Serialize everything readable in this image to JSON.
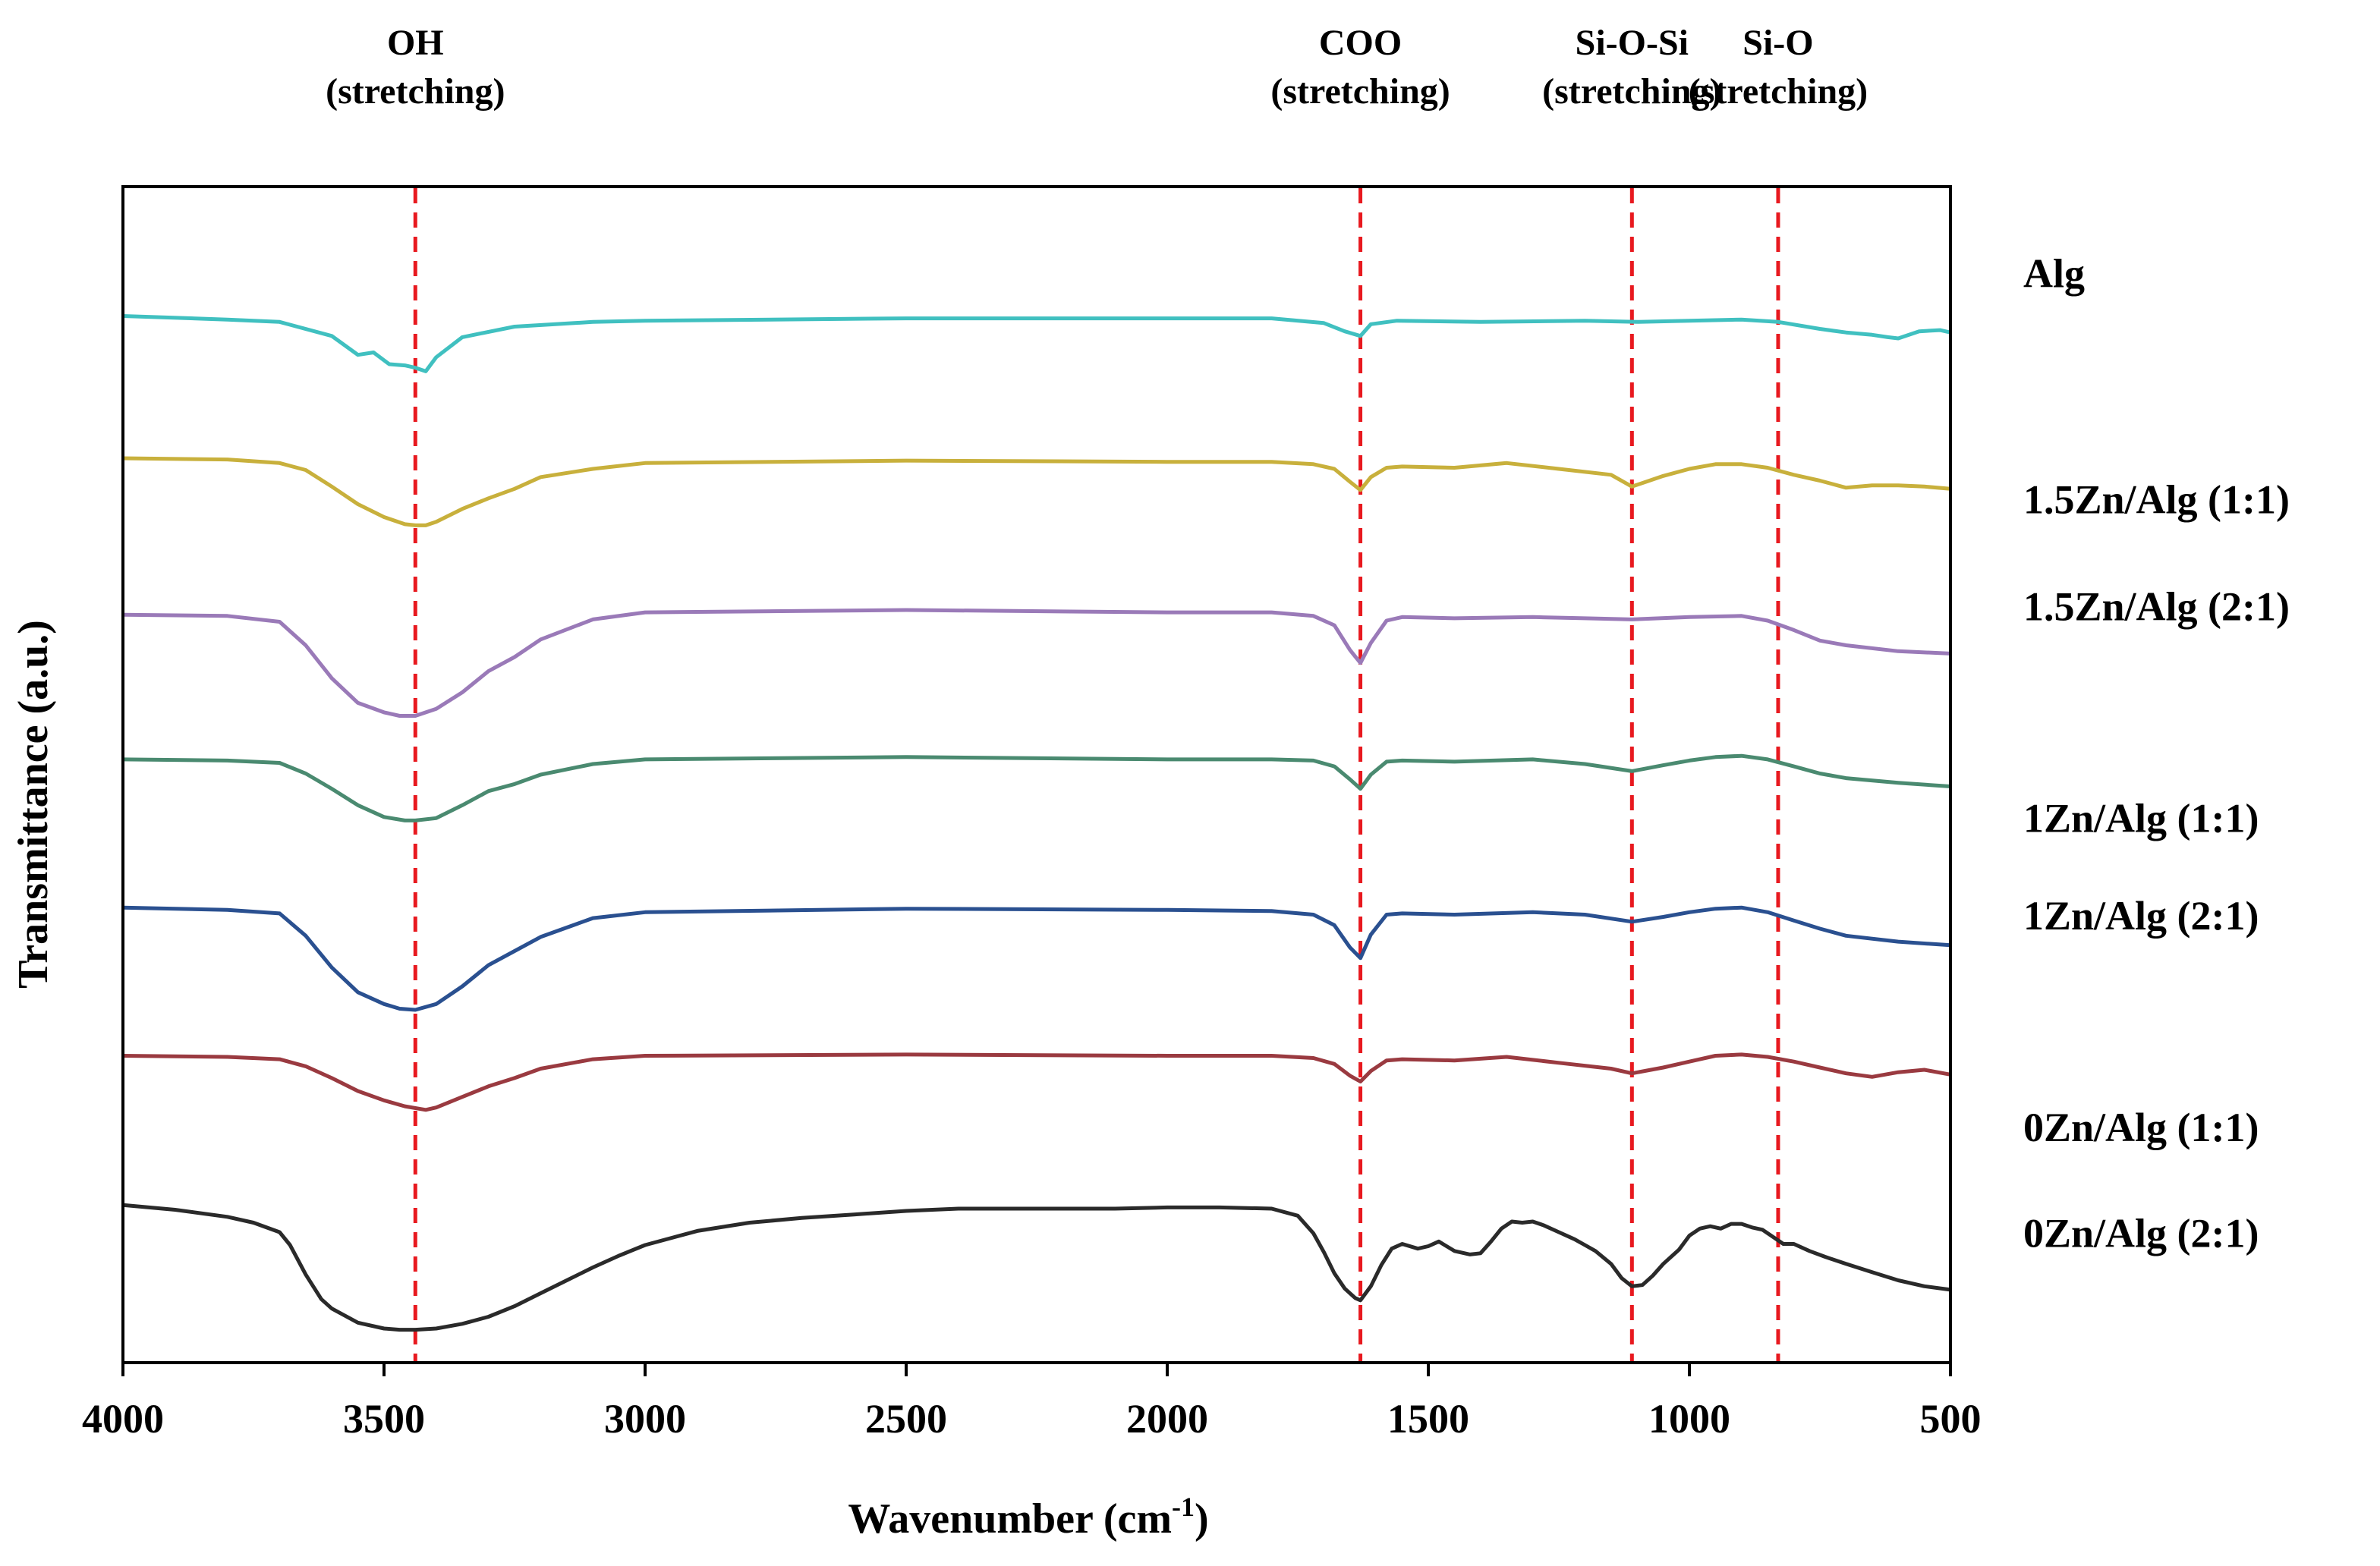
{
  "chart_data": {
    "type": "line",
    "title": "",
    "xlabel": "Wavenumber (cm",
    "xlabel_sup": "-1",
    "xlabel_close": ")",
    "ylabel": "Transmittance (a.u.)",
    "xlim": [
      4000,
      500
    ],
    "x_reversed": true,
    "ylim": [
      0,
      100
    ],
    "grid": false,
    "x_ticks": [
      4000,
      3500,
      3000,
      2500,
      2000,
      1500,
      1000,
      500
    ],
    "x_tick_labels": [
      "4000",
      "3500",
      "3000",
      "2500",
      "2000",
      "1500",
      "1000",
      "500"
    ],
    "reference_lines": [
      {
        "x": 3440,
        "color": "#e8191f",
        "style": "dashed",
        "label_line1": "OH",
        "label_line2": "(stretching)"
      },
      {
        "x": 1630,
        "color": "#e8191f",
        "style": "dashed",
        "label_line1": "COO",
        "label_line2": "(stretching)"
      },
      {
        "x": 1110,
        "color": "#e8191f",
        "style": "dashed",
        "label_line1": "Si-O-Si",
        "label_line2": "(stretching)"
      },
      {
        "x": 830,
        "color": "#e8191f",
        "style": "dashed",
        "label_line1": "Si-O",
        "label_line2": "(stretching)"
      }
    ],
    "series": [
      {
        "name": "Alg",
        "color": "#40c0c0",
        "label_level": 92.6,
        "x": [
          4000,
          3800,
          3700,
          3600,
          3550,
          3520,
          3490,
          3460,
          3440,
          3420,
          3400,
          3350,
          3250,
          3100,
          3000,
          2500,
          2000,
          1800,
          1700,
          1660,
          1630,
          1610,
          1560,
          1400,
          1200,
          1100,
          1000,
          900,
          830,
          750,
          700,
          650,
          620,
          600,
          560,
          520,
          500
        ],
        "y": [
          89.0,
          88.7,
          88.5,
          87.3,
          85.7,
          85.9,
          84.9,
          84.8,
          84.6,
          84.3,
          85.5,
          87.2,
          88.1,
          88.5,
          88.6,
          88.8,
          88.8,
          88.8,
          88.4,
          87.7,
          87.3,
          88.3,
          88.6,
          88.5,
          88.6,
          88.5,
          88.6,
          88.7,
          88.5,
          87.9,
          87.6,
          87.4,
          87.2,
          87.1,
          87.7,
          87.8,
          87.6
        ]
      },
      {
        "name": "1.5Zn/Alg (1:1)",
        "color": "#c8b03c",
        "label_level": 73.4,
        "x": [
          4000,
          3800,
          3700,
          3650,
          3600,
          3550,
          3500,
          3460,
          3440,
          3420,
          3400,
          3350,
          3300,
          3250,
          3200,
          3100,
          3000,
          2500,
          2000,
          1800,
          1720,
          1680,
          1650,
          1630,
          1610,
          1580,
          1550,
          1450,
          1350,
          1250,
          1150,
          1110,
          1050,
          1000,
          950,
          900,
          850,
          800,
          750,
          700,
          650,
          600,
          550,
          500
        ],
        "y": [
          76.9,
          76.8,
          76.5,
          75.9,
          74.5,
          73.0,
          71.9,
          71.3,
          71.2,
          71.2,
          71.5,
          72.6,
          73.5,
          74.3,
          75.3,
          76.0,
          76.5,
          76.7,
          76.6,
          76.6,
          76.4,
          76.0,
          74.9,
          74.2,
          75.3,
          76.1,
          76.2,
          76.1,
          76.5,
          76.0,
          75.5,
          74.5,
          75.4,
          76.0,
          76.4,
          76.4,
          76.1,
          75.5,
          75.0,
          74.4,
          74.6,
          74.6,
          74.5,
          74.3
        ]
      },
      {
        "name": "1.5Zn/Alg (2:1)",
        "color": "#9a7ab8",
        "label_level": 64.3,
        "x": [
          4000,
          3800,
          3700,
          3650,
          3600,
          3550,
          3500,
          3470,
          3440,
          3400,
          3350,
          3300,
          3250,
          3200,
          3100,
          3000,
          2500,
          2000,
          1800,
          1720,
          1680,
          1650,
          1630,
          1610,
          1580,
          1550,
          1450,
          1300,
          1200,
          1110,
          1000,
          900,
          850,
          800,
          750,
          700,
          600,
          500
        ],
        "y": [
          63.6,
          63.5,
          63.0,
          61.0,
          58.2,
          56.1,
          55.3,
          55.0,
          55.0,
          55.6,
          57.0,
          58.8,
          60.0,
          61.5,
          63.2,
          63.8,
          64.0,
          63.8,
          63.8,
          63.5,
          62.7,
          60.6,
          59.5,
          61.2,
          63.1,
          63.4,
          63.3,
          63.4,
          63.3,
          63.2,
          63.4,
          63.5,
          63.1,
          62.3,
          61.4,
          61.0,
          60.5,
          60.3
        ]
      },
      {
        "name": "1Zn/Alg (1:1)",
        "color": "#4a8a70",
        "label_level": 46.3,
        "x": [
          4000,
          3800,
          3700,
          3650,
          3600,
          3550,
          3500,
          3460,
          3440,
          3400,
          3350,
          3300,
          3250,
          3200,
          3100,
          3000,
          2500,
          2000,
          1800,
          1720,
          1680,
          1650,
          1630,
          1610,
          1580,
          1550,
          1450,
          1300,
          1200,
          1110,
          1050,
          1000,
          950,
          900,
          850,
          800,
          750,
          700,
          600,
          500
        ],
        "y": [
          51.3,
          51.2,
          51.0,
          50.1,
          48.8,
          47.4,
          46.4,
          46.1,
          46.1,
          46.3,
          47.4,
          48.6,
          49.2,
          50.0,
          50.9,
          51.3,
          51.5,
          51.3,
          51.3,
          51.2,
          50.7,
          49.6,
          48.8,
          50.0,
          51.1,
          51.2,
          51.1,
          51.3,
          50.9,
          50.3,
          50.8,
          51.2,
          51.5,
          51.6,
          51.3,
          50.7,
          50.1,
          49.7,
          49.3,
          49.0
        ]
      },
      {
        "name": "1Zn/Alg (2:1)",
        "color": "#2a5090",
        "label_level": 38.0,
        "x": [
          4000,
          3800,
          3700,
          3650,
          3600,
          3550,
          3500,
          3470,
          3440,
          3400,
          3350,
          3300,
          3250,
          3200,
          3100,
          3000,
          2500,
          2000,
          1800,
          1720,
          1680,
          1650,
          1630,
          1610,
          1580,
          1550,
          1450,
          1300,
          1200,
          1110,
          1050,
          1000,
          950,
          900,
          850,
          800,
          750,
          700,
          600,
          500
        ],
        "y": [
          38.7,
          38.5,
          38.2,
          36.3,
          33.6,
          31.5,
          30.5,
          30.1,
          30.0,
          30.5,
          32.0,
          33.8,
          35.0,
          36.2,
          37.8,
          38.3,
          38.6,
          38.5,
          38.4,
          38.1,
          37.2,
          35.3,
          34.4,
          36.4,
          38.1,
          38.2,
          38.1,
          38.3,
          38.1,
          37.5,
          37.9,
          38.3,
          38.6,
          38.7,
          38.3,
          37.6,
          36.9,
          36.3,
          35.8,
          35.5
        ]
      },
      {
        "name": "0Zn/Alg (1:1)",
        "color": "#9a3a40",
        "label_level": 20.0,
        "x": [
          4000,
          3800,
          3700,
          3650,
          3600,
          3550,
          3500,
          3460,
          3420,
          3400,
          3350,
          3300,
          3250,
          3200,
          3100,
          3000,
          2500,
          2000,
          1800,
          1720,
          1680,
          1650,
          1630,
          1610,
          1580,
          1550,
          1450,
          1350,
          1250,
          1150,
          1110,
          1050,
          1000,
          950,
          900,
          850,
          800,
          750,
          700,
          650,
          600,
          550,
          500
        ],
        "y": [
          26.1,
          26.0,
          25.8,
          25.2,
          24.2,
          23.1,
          22.3,
          21.8,
          21.5,
          21.7,
          22.6,
          23.5,
          24.2,
          25.0,
          25.8,
          26.1,
          26.2,
          26.1,
          26.1,
          25.9,
          25.4,
          24.4,
          23.9,
          24.8,
          25.7,
          25.8,
          25.7,
          26.0,
          25.5,
          25.0,
          24.6,
          25.1,
          25.6,
          26.1,
          26.2,
          26.0,
          25.6,
          25.1,
          24.6,
          24.3,
          24.7,
          24.9,
          24.5
        ]
      },
      {
        "name": "0Zn/Alg (2:1)",
        "color": "#2a2a2a",
        "label_level": 11.0,
        "x": [
          4000,
          3900,
          3800,
          3750,
          3700,
          3680,
          3650,
          3620,
          3600,
          3550,
          3500,
          3470,
          3440,
          3400,
          3350,
          3300,
          3250,
          3200,
          3150,
          3100,
          3050,
          3000,
          2900,
          2800,
          2700,
          2600,
          2500,
          2400,
          2300,
          2200,
          2100,
          2000,
          1900,
          1800,
          1750,
          1720,
          1700,
          1680,
          1660,
          1640,
          1630,
          1610,
          1590,
          1570,
          1550,
          1520,
          1500,
          1480,
          1450,
          1420,
          1400,
          1380,
          1360,
          1340,
          1320,
          1300,
          1280,
          1250,
          1220,
          1200,
          1180,
          1150,
          1130,
          1110,
          1090,
          1070,
          1050,
          1020,
          1000,
          980,
          960,
          940,
          920,
          900,
          880,
          860,
          840,
          820,
          800,
          770,
          740,
          700,
          650,
          600,
          550,
          500
        ],
        "y": [
          13.4,
          13.0,
          12.4,
          11.9,
          11.1,
          10.0,
          7.5,
          5.4,
          4.6,
          3.4,
          2.9,
          2.8,
          2.8,
          2.9,
          3.3,
          3.9,
          4.8,
          5.9,
          7.0,
          8.1,
          9.1,
          10.0,
          11.2,
          11.9,
          12.3,
          12.6,
          12.9,
          13.1,
          13.1,
          13.1,
          13.1,
          13.2,
          13.2,
          13.1,
          12.5,
          11.0,
          9.4,
          7.6,
          6.3,
          5.5,
          5.3,
          6.5,
          8.3,
          9.7,
          10.1,
          9.7,
          9.9,
          10.3,
          9.5,
          9.2,
          9.3,
          10.3,
          11.4,
          12.0,
          11.9,
          12.0,
          11.7,
          11.1,
          10.5,
          10.0,
          9.5,
          8.4,
          7.2,
          6.5,
          6.6,
          7.4,
          8.4,
          9.6,
          10.8,
          11.4,
          11.6,
          11.4,
          11.8,
          11.8,
          11.5,
          11.3,
          10.7,
          10.1,
          10.1,
          9.5,
          9.0,
          8.4,
          7.7,
          7.0,
          6.5,
          6.2
        ]
      }
    ]
  }
}
